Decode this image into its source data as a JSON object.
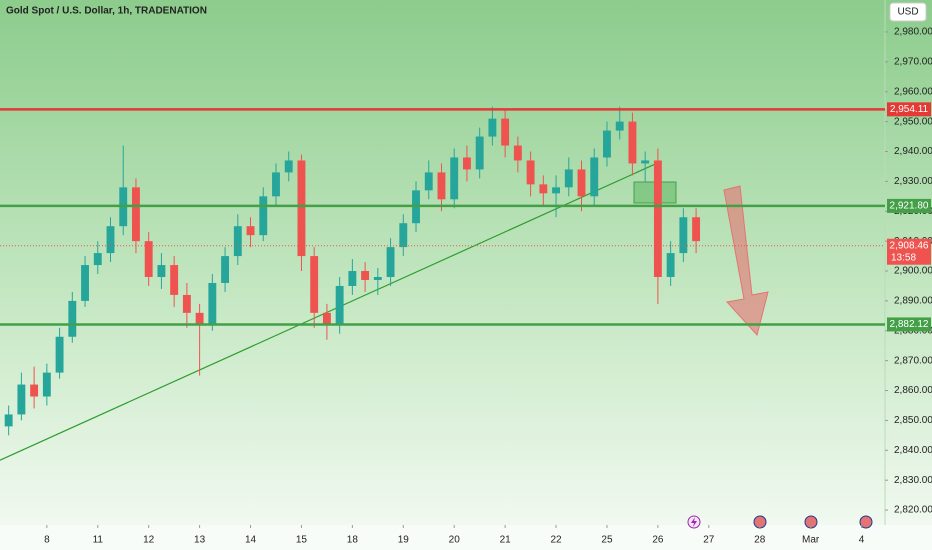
{
  "chart_data": {
    "type": "candlestick",
    "title": "Gold Spot / U.S. Dollar, 1h, TRADENATION",
    "currency": "USD",
    "up_color": "#26a69a",
    "down_color": "#ef5350",
    "xlim": [
      -0.92,
      16.46
    ],
    "ylim": [
      2815,
      2990.7
    ],
    "xticks": [
      {
        "value": 0,
        "label": "8"
      },
      {
        "value": 1,
        "label": "11"
      },
      {
        "value": 2,
        "label": "12"
      },
      {
        "value": 3,
        "label": "13"
      },
      {
        "value": 4,
        "label": "14"
      },
      {
        "value": 5,
        "label": "15"
      },
      {
        "value": 6,
        "label": "18"
      },
      {
        "value": 7,
        "label": "19"
      },
      {
        "value": 8,
        "label": "20"
      },
      {
        "value": 9,
        "label": "21"
      },
      {
        "value": 10,
        "label": "22"
      },
      {
        "value": 11,
        "label": "25"
      },
      {
        "value": 12,
        "label": "26"
      },
      {
        "value": 13,
        "label": "27"
      },
      {
        "value": 14,
        "label": "28"
      },
      {
        "value": 15,
        "label": "Mar"
      },
      {
        "value": 16,
        "label": "4"
      }
    ],
    "yticks": [
      {
        "value": 2820,
        "label": "2,820.00"
      },
      {
        "value": 2830,
        "label": "2,830.00"
      },
      {
        "value": 2840,
        "label": "2,840.00"
      },
      {
        "value": 2850,
        "label": "2,850.00"
      },
      {
        "value": 2860,
        "label": "2,860.00"
      },
      {
        "value": 2870,
        "label": "2,870.00"
      },
      {
        "value": 2880,
        "label": "2,880.00"
      },
      {
        "value": 2890,
        "label": "2,890.00"
      },
      {
        "value": 2900,
        "label": "2,900.00"
      },
      {
        "value": 2910,
        "label": "2,910.00"
      },
      {
        "value": 2920,
        "label": "2,920.00"
      },
      {
        "value": 2930,
        "label": "2,930.00"
      },
      {
        "value": 2940,
        "label": "2,940.00"
      },
      {
        "value": 2950,
        "label": "2,950.00"
      },
      {
        "value": 2960,
        "label": "2,960.00"
      },
      {
        "value": 2970,
        "label": "2,970.00"
      },
      {
        "value": 2980,
        "label": "2,980.00"
      }
    ],
    "x": [
      -0.75,
      -0.5,
      -0.25,
      0,
      0.25,
      0.5,
      0.75,
      1,
      1.25,
      1.5,
      1.75,
      2,
      2.25,
      2.5,
      2.75,
      3,
      3.25,
      3.5,
      3.75,
      4,
      4.25,
      4.5,
      4.75,
      5,
      5.25,
      5.5,
      5.75,
      6,
      6.25,
      6.5,
      6.75,
      7,
      7.25,
      7.5,
      7.75,
      8,
      8.25,
      8.5,
      8.75,
      9,
      9.25,
      9.5,
      9.75,
      10,
      10.25,
      10.5,
      10.75,
      11,
      11.25,
      11.5,
      11.75,
      12,
      12.25,
      12.5,
      12.75
    ],
    "open": [
      2848,
      2852,
      2862,
      2858,
      2866,
      2878,
      2890,
      2902,
      2906,
      2915,
      2928,
      2910,
      2898,
      2902,
      2892,
      2886,
      2882,
      2896,
      2905,
      2915,
      2912,
      2925,
      2933,
      2937,
      2905,
      2886,
      2882,
      2895,
      2900,
      2897,
      2898,
      2908,
      2916,
      2927,
      2933,
      2924,
      2938,
      2934,
      2945,
      2951,
      2942,
      2937,
      2929,
      2926,
      2928,
      2934,
      2925,
      2938,
      2947,
      2950,
      2936,
      2937,
      2898,
      2906,
      2918
    ],
    "high": [
      2855,
      2866,
      2868,
      2869,
      2881,
      2893,
      2905,
      2910,
      2918,
      2942,
      2931,
      2913,
      2906,
      2905,
      2896,
      2889,
      2899,
      2908,
      2919,
      2918,
      2928,
      2936,
      2940,
      2939,
      2908,
      2889,
      2898,
      2904,
      2903,
      2901,
      2911,
      2919,
      2930,
      2937,
      2936,
      2941,
      2942,
      2948,
      2955,
      2954,
      2945,
      2940,
      2932,
      2932,
      2938,
      2937,
      2941,
      2950,
      2955,
      2953,
      2940,
      2941,
      2910,
      2921,
      2921
    ],
    "low": [
      2845,
      2850,
      2854,
      2855,
      2864,
      2876,
      2888,
      2899,
      2903,
      2912,
      2906,
      2895,
      2894,
      2888,
      2881,
      2865,
      2880,
      2893,
      2902,
      2908,
      2910,
      2922,
      2930,
      2900,
      2881,
      2877,
      2879,
      2892,
      2893,
      2892,
      2895,
      2905,
      2913,
      2924,
      2920,
      2921,
      2930,
      2931,
      2942,
      2938,
      2933,
      2925,
      2922,
      2918,
      2925,
      2920,
      2922,
      2935,
      2944,
      2932,
      2930,
      2889,
      2895,
      2903,
      2906
    ],
    "close": [
      2852,
      2862,
      2858,
      2866,
      2878,
      2890,
      2902,
      2906,
      2915,
      2928,
      2910,
      2898,
      2902,
      2892,
      2886,
      2882,
      2896,
      2905,
      2915,
      2912,
      2925,
      2933,
      2937,
      2905,
      2886,
      2882,
      2895,
      2900,
      2897,
      2898,
      2908,
      2916,
      2927,
      2933,
      2924,
      2938,
      2934,
      2945,
      2951,
      2942,
      2937,
      2929,
      2926,
      2928,
      2934,
      2925,
      2938,
      2947,
      2950,
      2936,
      2937,
      2898,
      2906,
      2918,
      2910
    ],
    "levels": [
      {
        "value": 2954.11,
        "label": "2,954.11",
        "color": "#e53935"
      },
      {
        "value": 2921.8,
        "label": "2,921.80",
        "color": "#43a047"
      },
      {
        "value": 2882.12,
        "label": "2,882.12",
        "color": "#43a047"
      }
    ],
    "current_price": {
      "value": 2908.46,
      "label": "2,908.46",
      "countdown": "13:58",
      "color": "#ef5350"
    },
    "trendline": {
      "x": [
        -0.92,
        12.0
      ],
      "y": [
        2836.7,
        2936.2
      ],
      "color": "#2e9e2e"
    }
  }
}
